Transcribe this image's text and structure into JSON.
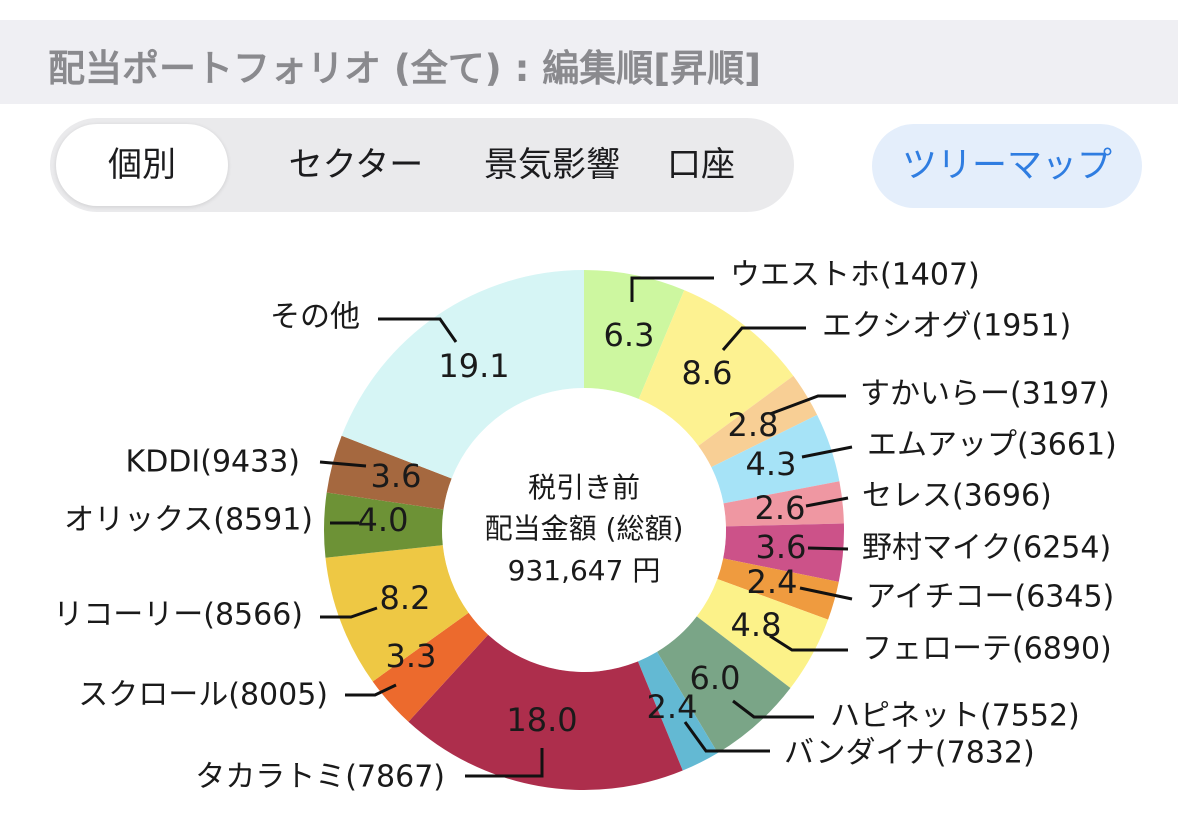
{
  "header": {
    "title": "配当ポートフォリオ (全て) : 編集順[昇順]"
  },
  "tabs": {
    "items": [
      {
        "label": "個別",
        "active": true
      },
      {
        "label": "セクター",
        "active": false
      },
      {
        "label": "景気影響",
        "active": false
      },
      {
        "label": "口座",
        "active": false
      }
    ],
    "treemap_label": "ツリーマップ"
  },
  "chart_data": {
    "type": "pie",
    "center_line1": "税引き前",
    "center_line2": "配当金額 (総額)",
    "center_total": "931,647 円",
    "slices": [
      {
        "label": "ウエストホ(1407)",
        "value": 6.3,
        "display": "6.3",
        "color": "#cdf7a0"
      },
      {
        "label": "エクシオグ(1951)",
        "value": 8.6,
        "display": "8.6",
        "color": "#fdf291"
      },
      {
        "label": "すかいらー(3197)",
        "value": 2.8,
        "display": "2.8",
        "color": "#f8cf95"
      },
      {
        "label": "エムアップ(3661)",
        "value": 4.3,
        "display": "4.3",
        "color": "#a6e3f7"
      },
      {
        "label": "セレス(3696)",
        "value": 2.6,
        "display": "2.6",
        "color": "#ef97a2"
      },
      {
        "label": "野村マイク(6254)",
        "value": 3.6,
        "display": "3.6",
        "color": "#cc5289"
      },
      {
        "label": "アイチコー(6345)",
        "value": 2.4,
        "display": "2.4",
        "color": "#ef9b3f"
      },
      {
        "label": "フェローテ(6890)",
        "value": 4.8,
        "display": "4.8",
        "color": "#fcf289"
      },
      {
        "label": "ハピネット(7552)",
        "value": 6.0,
        "display": "6.0",
        "color": "#7aa587"
      },
      {
        "label": "バンダイナ(7832)",
        "value": 2.4,
        "display": "2.4",
        "color": "#63b9d3"
      },
      {
        "label": "タカラトミ(7867)",
        "value": 18.0,
        "display": "18.0",
        "color": "#ad2e4c"
      },
      {
        "label": "スクロール(8005)",
        "value": 3.3,
        "display": "3.3",
        "color": "#ec6a2d"
      },
      {
        "label": "リコーリー(8566)",
        "value": 8.2,
        "display": "8.2",
        "color": "#eec844"
      },
      {
        "label": "オリックス(8591)",
        "value": 4.0,
        "display": "4.0",
        "color": "#6d9236"
      },
      {
        "label": "KDDI(9433)",
        "value": 3.6,
        "display": "3.6",
        "color": "#a5683f"
      },
      {
        "label": "その他",
        "value": 19.1,
        "display": "19.1",
        "color": "#d6f5f5"
      }
    ]
  }
}
